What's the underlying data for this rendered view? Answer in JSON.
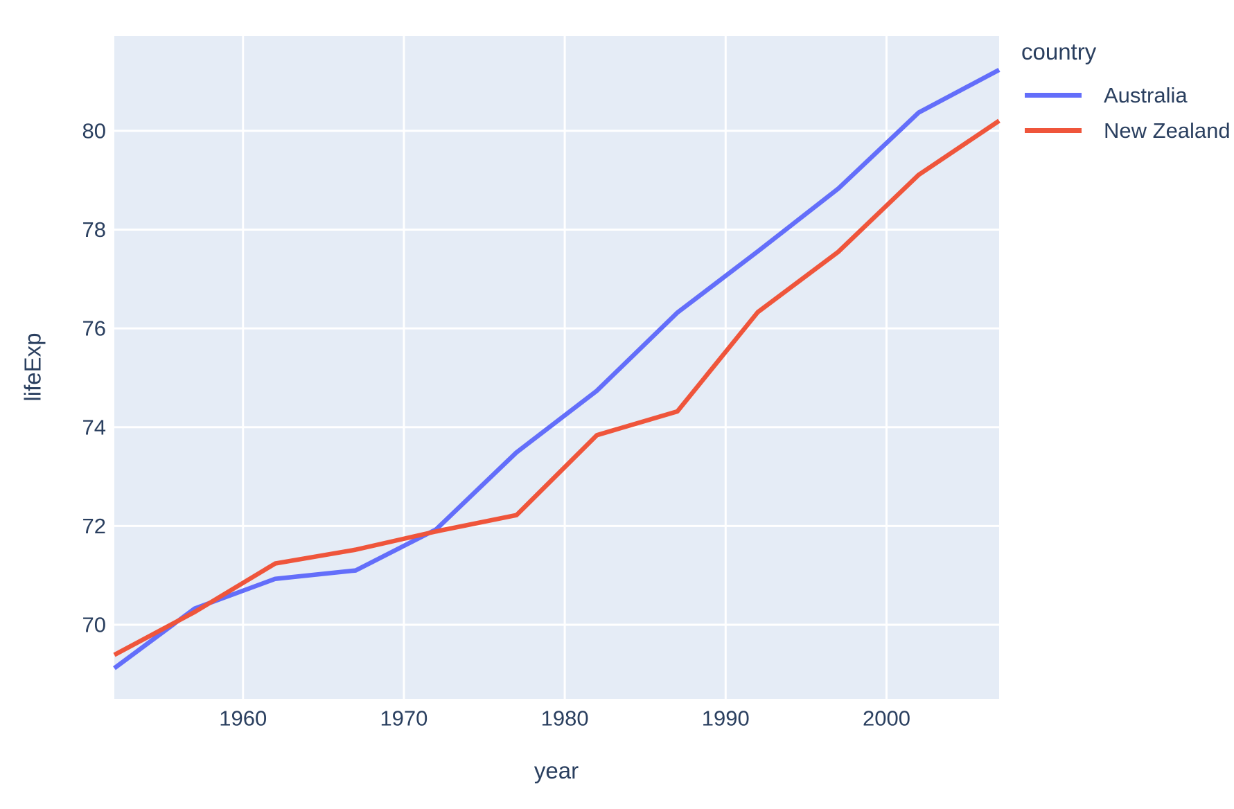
{
  "chart_data": {
    "type": "line",
    "title": "",
    "xlabel": "year",
    "ylabel": "lifeExp",
    "legend_title": "country",
    "legend_position": "top-right",
    "grid": true,
    "x_range": [
      1952,
      2007
    ],
    "y_range": [
      68.5,
      81.92
    ],
    "x_ticks": [
      1960,
      1970,
      1980,
      1990,
      2000
    ],
    "y_ticks": [
      70,
      72,
      74,
      76,
      78,
      80
    ],
    "x": [
      1952,
      1957,
      1962,
      1967,
      1972,
      1977,
      1982,
      1987,
      1992,
      1997,
      2002,
      2007
    ],
    "series": [
      {
        "name": "Australia",
        "color": "#636EFA",
        "values": [
          69.12,
          70.33,
          70.93,
          71.1,
          71.93,
          73.49,
          74.74,
          76.32,
          77.56,
          78.83,
          80.37,
          81.235
        ]
      },
      {
        "name": "New Zealand",
        "color": "#EF553B",
        "values": [
          69.39,
          70.26,
          71.24,
          71.52,
          71.89,
          72.22,
          73.84,
          74.32,
          76.33,
          77.55,
          79.11,
          80.204
        ]
      }
    ],
    "colors": {
      "page_bg": "#FFFFFF",
      "plot_bg": "#E5ECF6",
      "grid": "#FFFFFF",
      "text": "#2A3F5F"
    }
  }
}
